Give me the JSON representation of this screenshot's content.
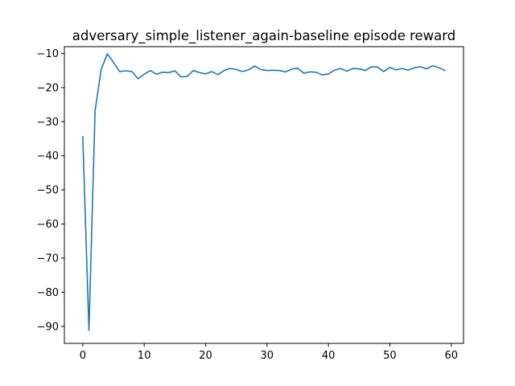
{
  "chart_data": {
    "type": "line",
    "title": "adversary_simple_listener_again-baseline episode reward",
    "xlabel": "",
    "ylabel": "",
    "xlim": [
      -3,
      62
    ],
    "ylim": [
      -95,
      -8
    ],
    "x_ticks": [
      0,
      10,
      20,
      30,
      40,
      50,
      60
    ],
    "x_tick_labels": [
      "0",
      "10",
      "20",
      "30",
      "40",
      "50",
      "60"
    ],
    "y_ticks": [
      -10,
      -20,
      -30,
      -40,
      -50,
      -60,
      -70,
      -80,
      -90
    ],
    "y_tick_labels": [
      "−10",
      "−20",
      "−30",
      "−40",
      "−50",
      "−60",
      "−70",
      "−80",
      "−90"
    ],
    "grid": false,
    "series": [
      {
        "color": "#1f77b4",
        "x": [
          0,
          1,
          2,
          3,
          4,
          5,
          6,
          7,
          8,
          9,
          10,
          11,
          12,
          13,
          14,
          15,
          16,
          17,
          18,
          19,
          20,
          21,
          22,
          23,
          24,
          25,
          26,
          27,
          28,
          29,
          30,
          31,
          32,
          33,
          34,
          35,
          36,
          37,
          38,
          39,
          40,
          41,
          42,
          43,
          44,
          45,
          46,
          47,
          48,
          49,
          50,
          51,
          52,
          53,
          54,
          55,
          56,
          57,
          58,
          59
        ],
        "values": [
          -34.4,
          -91.2,
          -26.9,
          -14.6,
          -10.1,
          -12.6,
          -15.3,
          -15.1,
          -15.3,
          -17.4,
          -16.1,
          -15.0,
          -16.1,
          -15.5,
          -15.6,
          -15.1,
          -16.9,
          -16.7,
          -15.0,
          -15.6,
          -16.0,
          -15.3,
          -16.2,
          -15.0,
          -14.4,
          -14.7,
          -15.3,
          -14.8,
          -13.7,
          -14.7,
          -15.0,
          -14.9,
          -15.0,
          -15.4,
          -14.6,
          -14.3,
          -15.8,
          -15.4,
          -15.5,
          -16.3,
          -16.0,
          -14.9,
          -14.4,
          -15.2,
          -14.4,
          -14.5,
          -15.0,
          -13.9,
          -14.0,
          -15.3,
          -14.1,
          -14.8,
          -14.4,
          -14.9,
          -14.2,
          -13.9,
          -14.5,
          -13.6,
          -14.2,
          -15.0
        ]
      }
    ]
  }
}
